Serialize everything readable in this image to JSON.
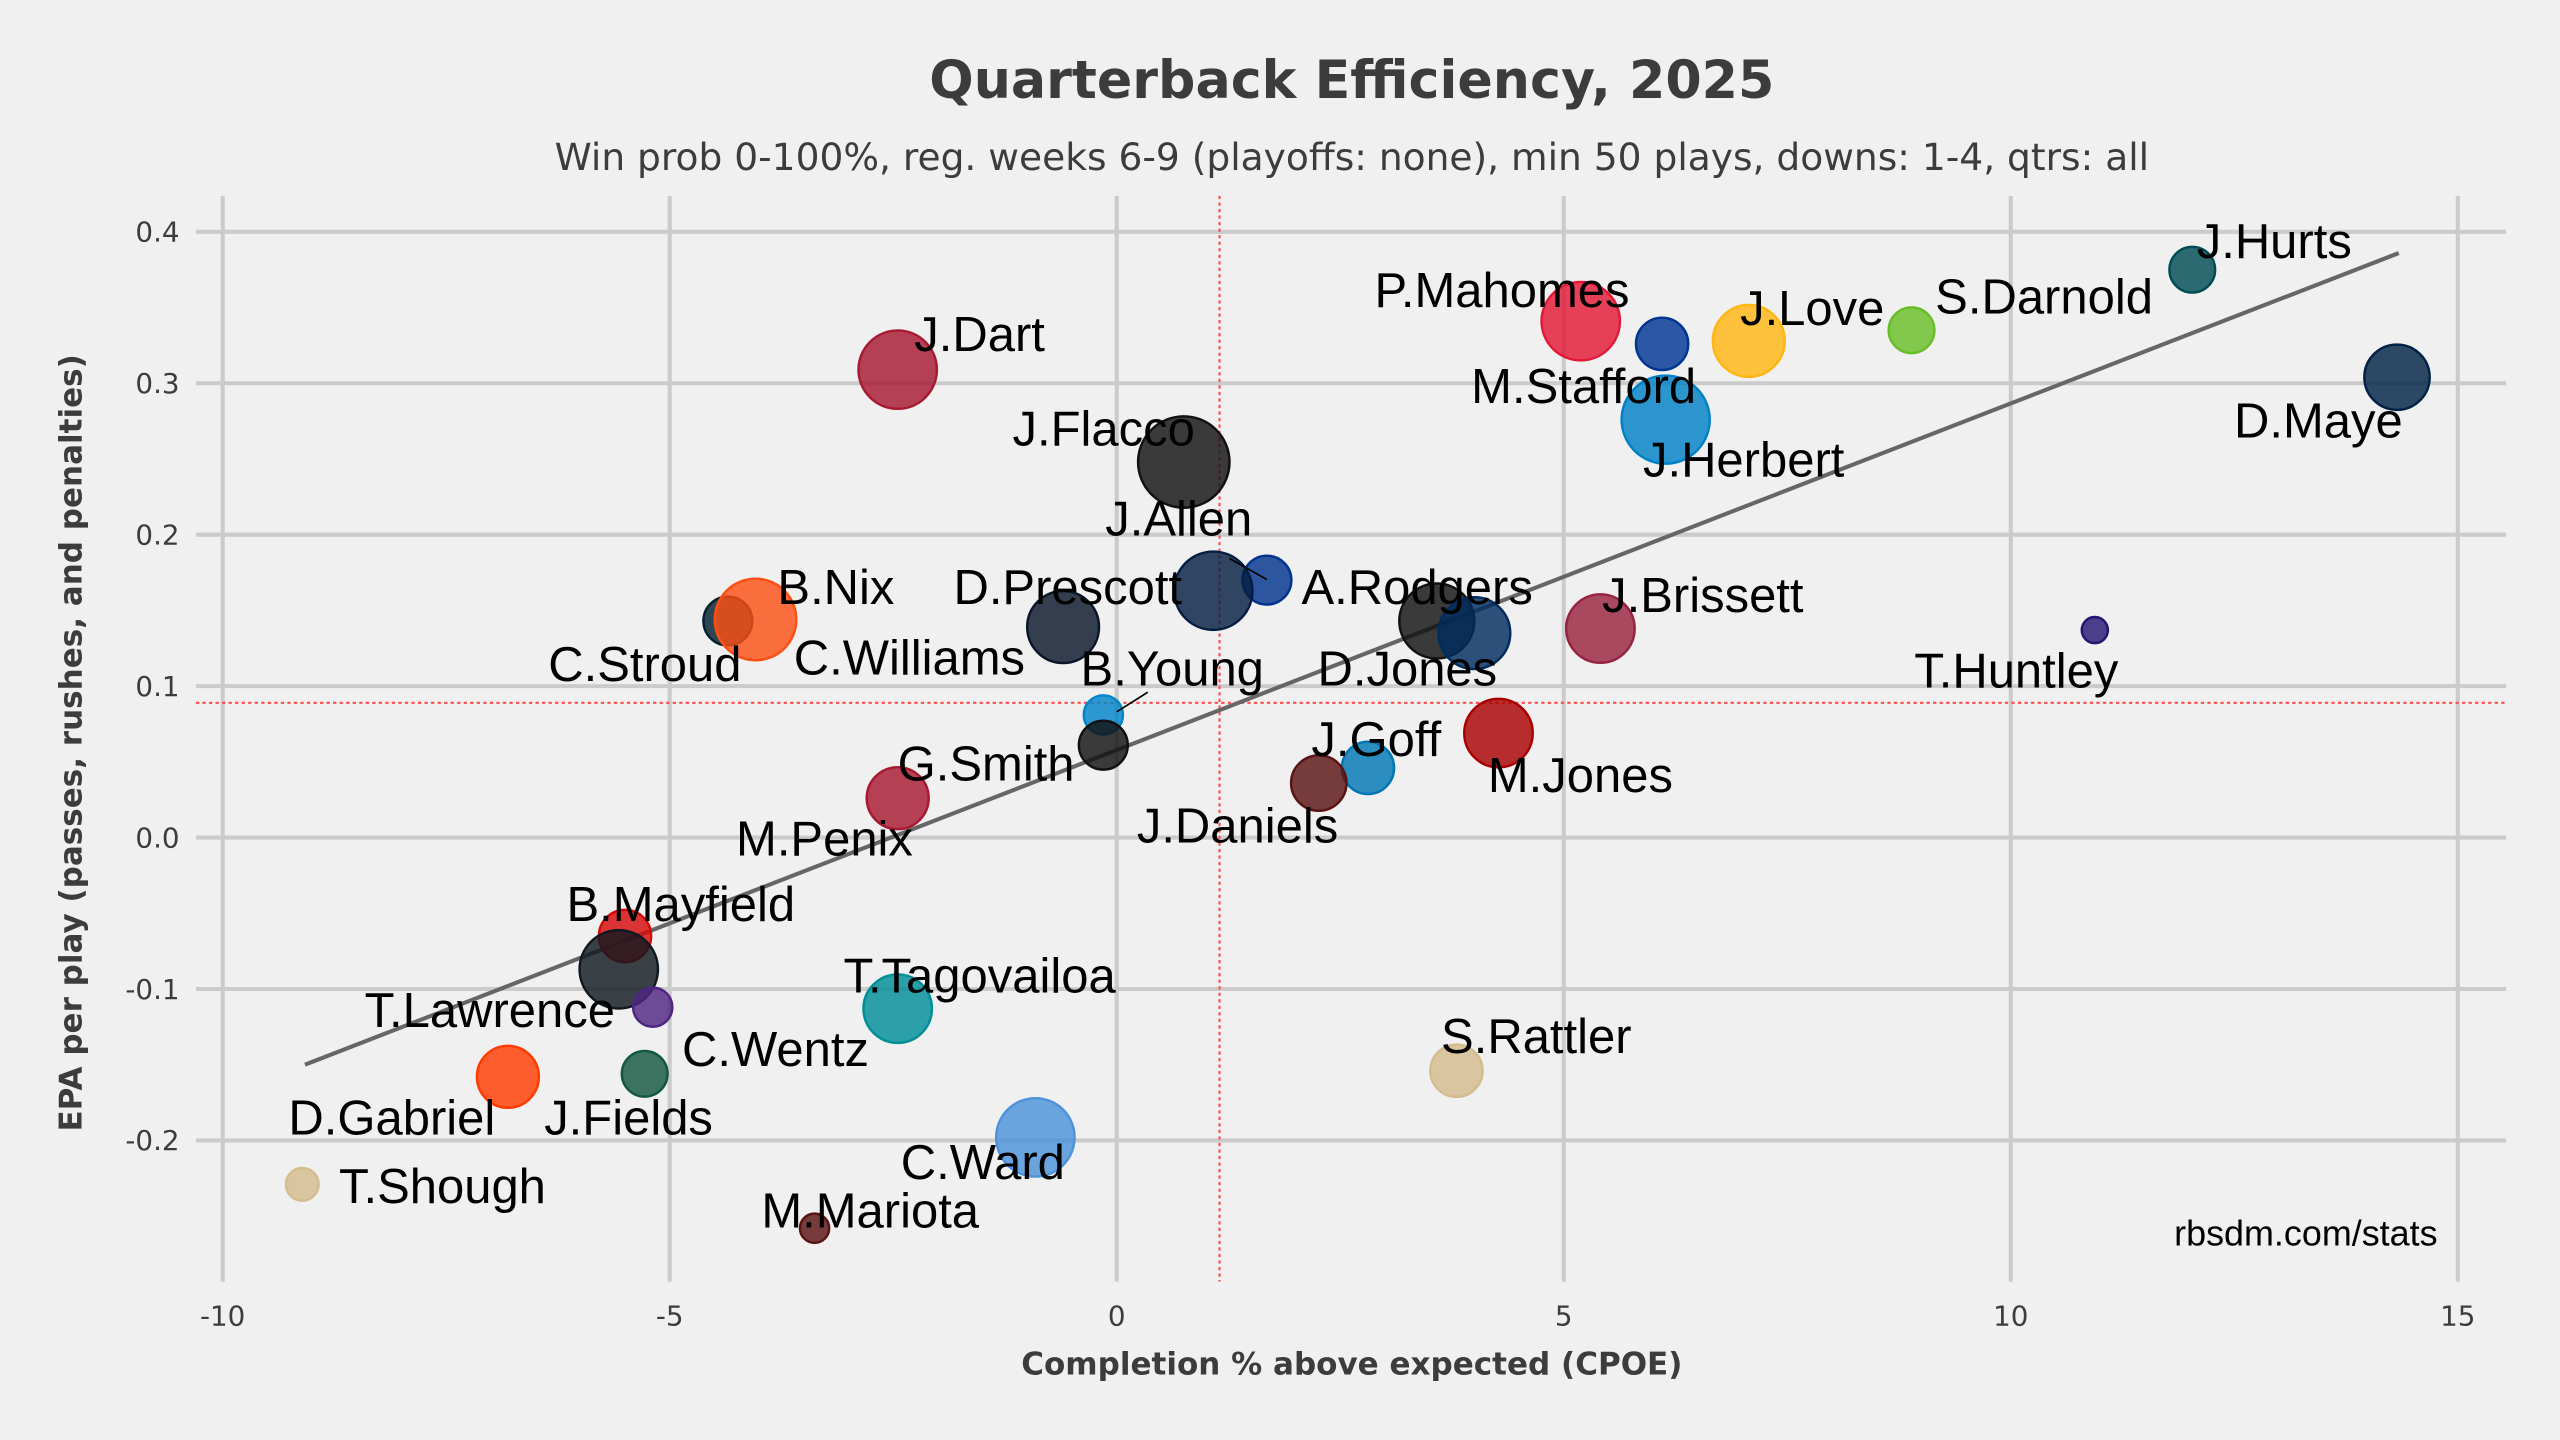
{
  "chart_data": {
    "type": "scatter",
    "title": "Quarterback Efficiency, 2025",
    "subtitle": "Win prob 0-100%, reg. weeks 6-9 (playoffs: none), min 50 plays, downs: 1-4, qtrs: all",
    "xlabel": "Completion % above expected (CPOE)",
    "ylabel": "EPA per play (passes, rushes, and penalties)",
    "credit": "rbsdm.com/stats",
    "xlim": [
      -10,
      15
    ],
    "ylim": [
      -0.28,
      0.42
    ],
    "xticks": [
      "-10",
      "-5",
      "0",
      "5",
      "10",
      "15"
    ],
    "yticks": [
      "-0.2",
      "-0.1",
      "0.0",
      "0.1",
      "0.2",
      "0.3",
      "0.4"
    ],
    "xtick_values": [
      -10,
      -5,
      0,
      5,
      10,
      15
    ],
    "ytick_values": [
      -0.2,
      -0.1,
      0.0,
      0.1,
      0.2,
      0.3,
      0.4
    ],
    "grid": true,
    "mean_lines": {
      "x": 1.15,
      "y": 0.089,
      "color": "#ff4d4d"
    },
    "trend_line": {
      "x": [
        -9.08,
        14.34
      ],
      "y": [
        -0.15,
        0.386
      ],
      "color": "#666666"
    },
    "points": [
      {
        "label": "J.Hurts",
        "x": 12.03,
        "y": 0.375,
        "size": 49,
        "color": "#004C54"
      },
      {
        "label": "D.Maye",
        "x": 14.32,
        "y": 0.304,
        "size": 100,
        "color": "#002244"
      },
      {
        "label": "S.Darnold",
        "x": 8.89,
        "y": 0.335,
        "size": 49,
        "color": "#69BE28"
      },
      {
        "label": "J.Love",
        "x": 7.07,
        "y": 0.328,
        "size": 121,
        "color": "#FFB612"
      },
      {
        "label": "P.Mahomes",
        "x": 5.19,
        "y": 0.341,
        "size": 144,
        "color": "#E31837"
      },
      {
        "label": "M.Stafford",
        "x": 6.1,
        "y": 0.326,
        "size": 64,
        "color": "#003594"
      },
      {
        "label": "J.Herbert",
        "x": 6.14,
        "y": 0.276,
        "size": 182,
        "color": "#0080C6"
      },
      {
        "label": "J.Dart",
        "x": -2.45,
        "y": 0.309,
        "size": 144,
        "color": "#A71930"
      },
      {
        "label": "J.Flacco",
        "x": 0.75,
        "y": 0.248,
        "size": 196,
        "color": "#111111"
      },
      {
        "label": "J.Allen",
        "x": 1.68,
        "y": 0.17,
        "size": 56,
        "color": "#00338D"
      },
      {
        "label": "D.Prescott",
        "x": 1.08,
        "y": 0.163,
        "size": 144,
        "color": "#041E42"
      },
      {
        "label": "C.Williams",
        "x": -0.6,
        "y": 0.139,
        "size": 121,
        "color": "#0B162A"
      },
      {
        "label": "C.Stroud",
        "x": -4.35,
        "y": 0.143,
        "size": 56,
        "color": "#03202F"
      },
      {
        "label": "B.Nix",
        "x": -4.04,
        "y": 0.144,
        "size": 156,
        "color": "#FB4F14"
      },
      {
        "label": "A.Rodgers",
        "x": 3.58,
        "y": 0.143,
        "size": 132,
        "color": "#111111"
      },
      {
        "label": "D.Jones",
        "x": 4.0,
        "y": 0.135,
        "size": 121,
        "color": "#002C5F"
      },
      {
        "label": "J.Brissett",
        "x": 5.41,
        "y": 0.138,
        "size": 110,
        "color": "#97233F"
      },
      {
        "label": "T.Huntley",
        "x": 10.94,
        "y": 0.137,
        "size": 16,
        "color": "#241773"
      },
      {
        "label": "B.Young",
        "x": -0.15,
        "y": 0.081,
        "size": 36,
        "color": "#0085CA"
      },
      {
        "label": "G.Smith",
        "x": -0.15,
        "y": 0.061,
        "size": 56,
        "color": "#111111"
      },
      {
        "label": "J.Goff",
        "x": 2.81,
        "y": 0.046,
        "size": 64,
        "color": "#0076B6"
      },
      {
        "label": "J.Daniels",
        "x": 2.26,
        "y": 0.036,
        "size": 72,
        "color": "#5A1414"
      },
      {
        "label": "M.Jones",
        "x": 4.27,
        "y": 0.069,
        "size": 110,
        "color": "#AA0000"
      },
      {
        "label": "M.Penix",
        "x": -2.45,
        "y": 0.026,
        "size": 90,
        "color": "#A71930"
      },
      {
        "label": "B.Mayfield",
        "x": -5.5,
        "y": -0.065,
        "size": 64,
        "color": "#D50A0A"
      },
      {
        "label": "T.Lawrence",
        "x": -5.57,
        "y": -0.087,
        "size": 144,
        "color": "#101820"
      },
      {
        "label": "C.Wentz",
        "x": -5.19,
        "y": -0.112,
        "size": 36,
        "color": "#4F2683"
      },
      {
        "label": "J.Fields",
        "x": -5.28,
        "y": -0.156,
        "size": 49,
        "color": "#125740"
      },
      {
        "label": "D.Gabriel",
        "x": -6.81,
        "y": -0.158,
        "size": 90,
        "color": "#FF3C00"
      },
      {
        "label": "T.Shough",
        "x": -9.11,
        "y": -0.229,
        "size": 25,
        "color": "#D3BC8D"
      },
      {
        "label": "T.Tagovailoa",
        "x": -2.45,
        "y": -0.113,
        "size": 110,
        "color": "#008E97"
      },
      {
        "label": "C.Ward",
        "x": -0.91,
        "y": -0.198,
        "size": 144,
        "color": "#4B92DB"
      },
      {
        "label": "M.Mariota",
        "x": -3.38,
        "y": -0.258,
        "size": 20,
        "color": "#5A1414"
      },
      {
        "label": "S.Rattler",
        "x": 3.8,
        "y": -0.154,
        "size": 64,
        "color": "#D3BC8D"
      }
    ]
  }
}
